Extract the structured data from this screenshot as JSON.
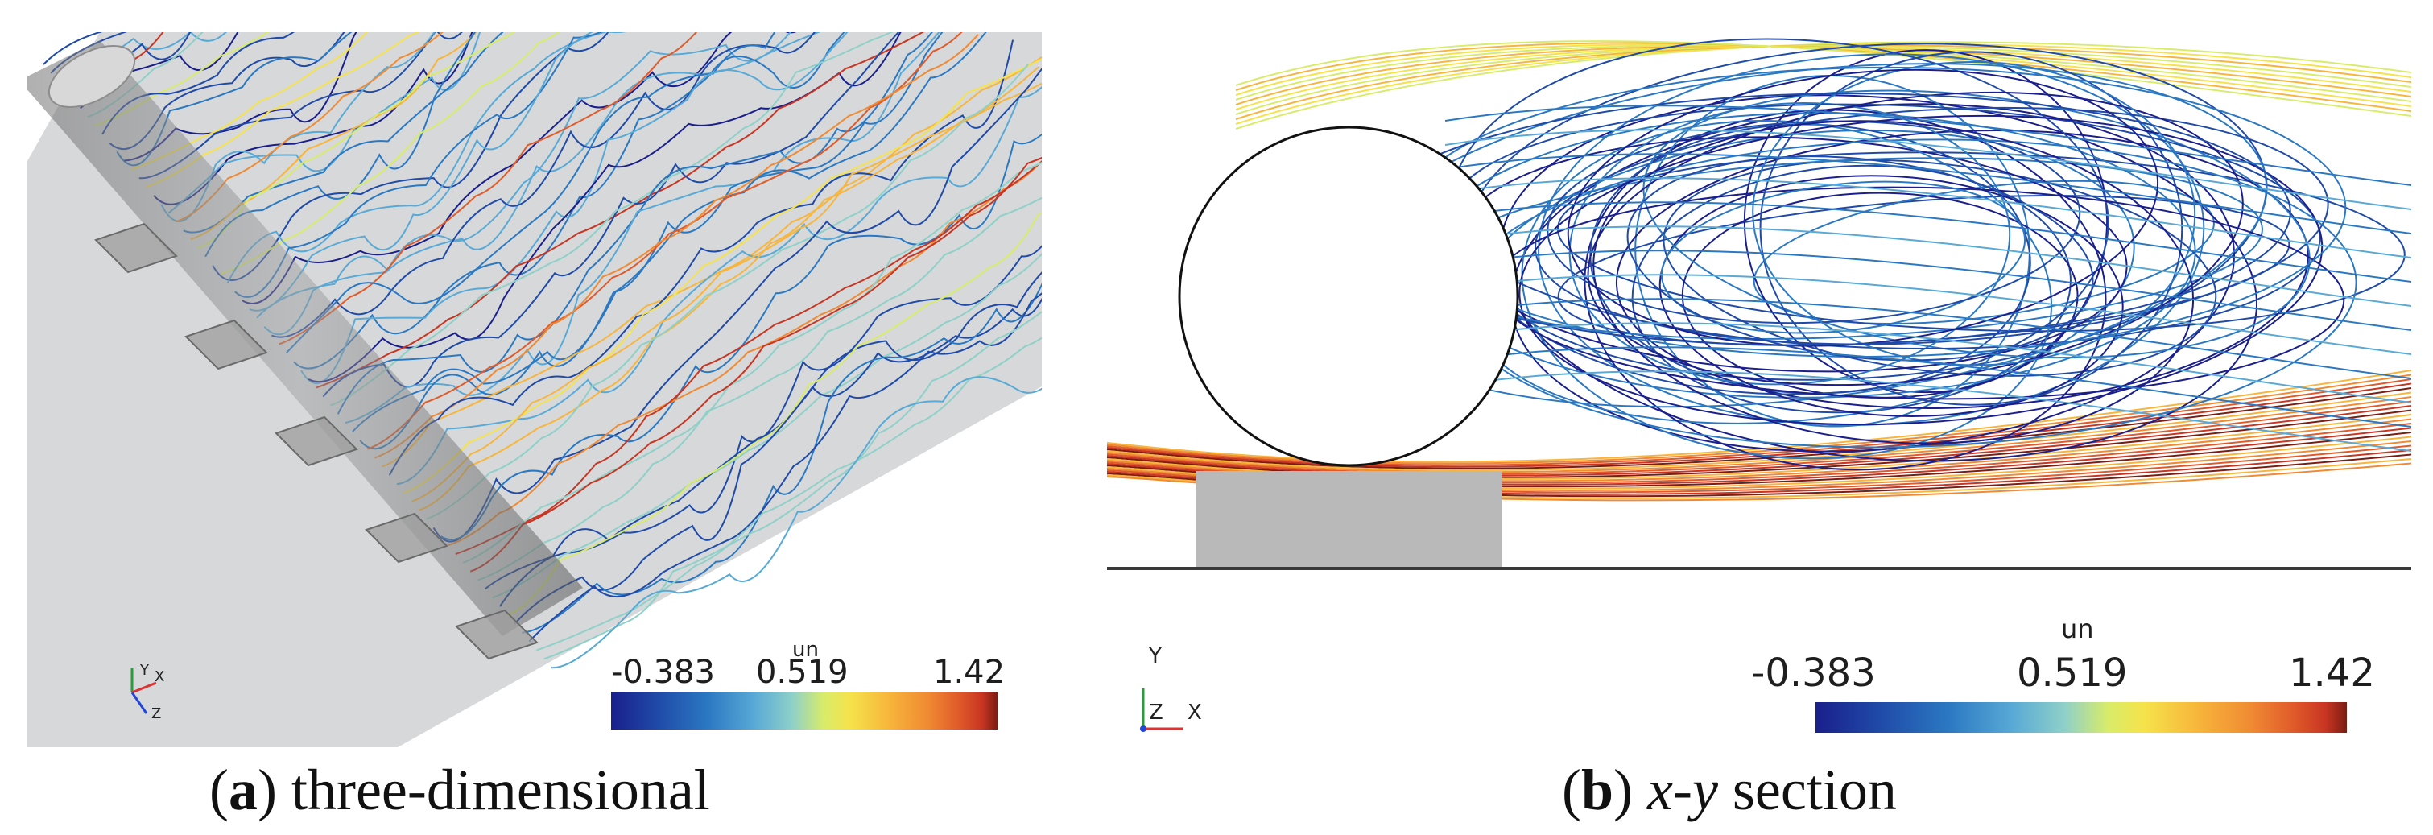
{
  "panel_a": {
    "colorbar": {
      "title": "un",
      "min_label": "-0.383",
      "mid_label": "0.519",
      "max_label": "1.42"
    },
    "axes": {
      "y": "Y",
      "x": "X",
      "z": "Z"
    },
    "caption": {
      "letter": "a",
      "open": "(",
      "close": ")",
      "text": " three-dimensional"
    }
  },
  "panel_b": {
    "colorbar": {
      "title": "un",
      "min_label": "-0.383",
      "mid_label": "0.519",
      "max_label": "1.42"
    },
    "axes": {
      "y": "Y",
      "x": "X",
      "z": "Z"
    },
    "caption": {
      "letter": "b",
      "open": "(",
      "close": ")",
      "math": "x-y",
      "text": " section"
    }
  },
  "colors": {
    "colormap": [
      "#1a1f8c",
      "#1f4aa8",
      "#2b78c2",
      "#58a9d6",
      "#8fd0c8",
      "#d8ec6a",
      "#f6e24a",
      "#f7b53b",
      "#f08a33",
      "#e05a2a",
      "#c83522",
      "#7a1d12"
    ],
    "body_gray": "#bdbdbd",
    "plane_gray": "#d6d8da",
    "cylinder_white": "#ffffff"
  }
}
